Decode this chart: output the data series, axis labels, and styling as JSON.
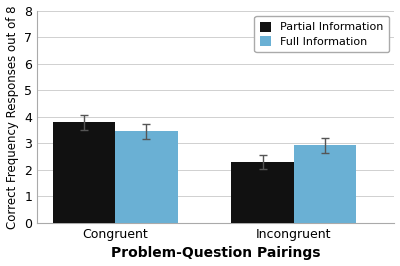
{
  "categories": [
    "Congruent",
    "Incongruent"
  ],
  "partial_info_values": [
    3.8,
    2.3
  ],
  "full_info_values": [
    3.45,
    2.92
  ],
  "partial_info_errors": [
    0.28,
    0.28
  ],
  "full_info_errors": [
    0.28,
    0.28
  ],
  "partial_info_color": "#111111",
  "full_info_color": "#6ab0d4",
  "partial_info_label": "Partial Information",
  "full_info_label": "Full Information",
  "xlabel": "Problem-Question Pairings",
  "ylabel": "Correct Frequency Responses out of 8",
  "ylim": [
    0,
    8
  ],
  "yticks": [
    0,
    1,
    2,
    3,
    4,
    5,
    6,
    7,
    8
  ],
  "bar_width": 0.28,
  "group_positions": [
    0.35,
    1.15
  ],
  "xlabel_fontsize": 10,
  "ylabel_fontsize": 8.5,
  "tick_fontsize": 9,
  "legend_fontsize": 8,
  "background_color": "#ffffff",
  "grid_color": "#d0d0d0",
  "error_cap_size": 3,
  "error_color": "#555555"
}
